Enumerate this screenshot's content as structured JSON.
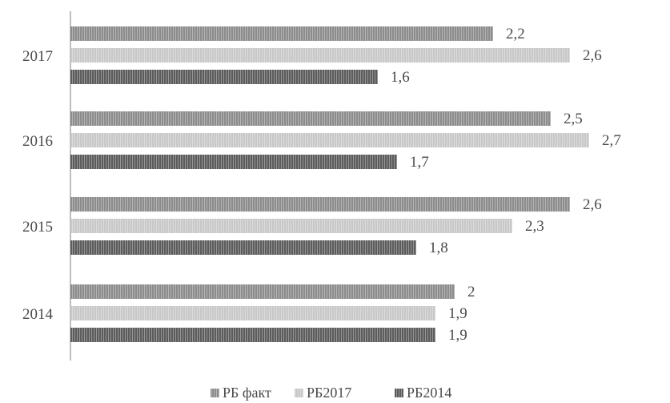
{
  "chart_data": {
    "type": "bar",
    "orientation": "horizontal",
    "categories": [
      "2017",
      "2016",
      "2015",
      "2014"
    ],
    "series": [
      {
        "name": "РБ факт",
        "values": [
          "2,2",
          "2,5",
          "2,6",
          "2"
        ],
        "numeric": [
          2.2,
          2.5,
          2.6,
          2.0
        ],
        "color": "#8c8c8c"
      },
      {
        "name": "РБ2017",
        "values": [
          "2,6",
          "2,7",
          "2,3",
          "1,9"
        ],
        "numeric": [
          2.6,
          2.7,
          2.3,
          1.9
        ],
        "color": "#c8c8c8"
      },
      {
        "name": "РБ2014",
        "values": [
          "1,6",
          "1,7",
          "1,8",
          "1,9"
        ],
        "numeric": [
          1.6,
          1.7,
          1.8,
          1.9
        ],
        "color": "#5c5c5c"
      }
    ],
    "xlim": [
      0,
      2.8
    ],
    "grid": false,
    "legend": "bottom"
  }
}
